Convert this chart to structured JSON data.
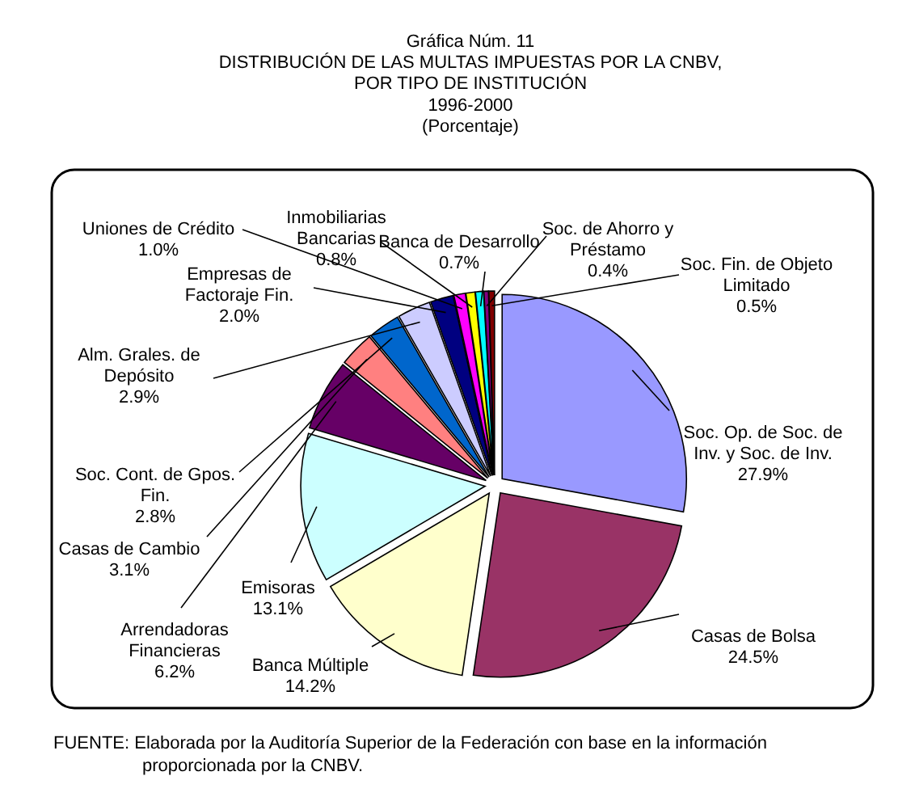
{
  "chart_data": {
    "type": "pie",
    "title": "Gráfica  Núm. 11\nDISTRIBUCIÓN DE LAS  MULTAS IMPUESTAS POR LA CNBV,\nPOR TIPO DE INSTITUCIÓN",
    "subtitle": "1996-2000\n(Porcentaje)",
    "categories": [
      "Soc. Op. de Soc. de\nInv. y Soc. de Inv.",
      "Casas de Bolsa",
      "Banca Múltiple",
      "Emisoras",
      "Arrendadoras\nFinancieras",
      "Casas de Cambio",
      "Soc. Cont. de Gpos.\nFin.",
      "Alm. Grales. de\nDepósito",
      "Empresas de\nFactoraje Fin.",
      "Uniones de Crédito",
      "Inmobiliarias\nBancarias",
      "Banca de Desarrollo",
      "Soc. de Ahorro y\nPréstamo",
      "Soc. Fin. de Objeto\nLimitado"
    ],
    "values": [
      27.9,
      24.5,
      14.2,
      13.1,
      6.2,
      3.1,
      2.8,
      2.9,
      2.0,
      1.0,
      0.8,
      0.7,
      0.4,
      0.5
    ],
    "value_labels": [
      "27.9%",
      "24.5%",
      "14.2%",
      "13.1%",
      "6.2%",
      "3.1%",
      "2.8%",
      "2.9%",
      "2.0%",
      "1.0%",
      "0.8%",
      "0.7%",
      "0.4%",
      "0.5%"
    ],
    "colors": [
      "#9999ff",
      "#993366",
      "#ffffcc",
      "#ccffff",
      "#660066",
      "#ff8080",
      "#0066cc",
      "#ccccff",
      "#000080",
      "#ff00ff",
      "#ffff00",
      "#00ffff",
      "#800080",
      "#800000"
    ],
    "legend": false,
    "annotations": [
      "FUENTE:  Elaborada por la Auditoría Superior de la Federación con base en la información proporcionada por la CNBV."
    ]
  }
}
